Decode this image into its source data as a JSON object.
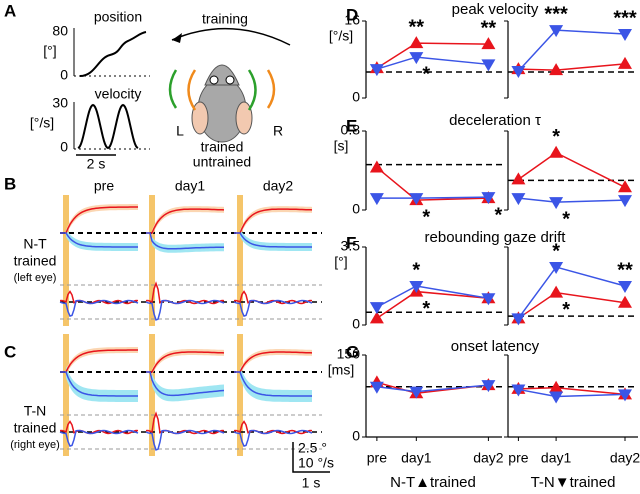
{
  "figure": {
    "panel_labels": [
      "A",
      "B",
      "C"
    ],
    "position": {
      "title": "position",
      "unit": "[°]",
      "ticks": [
        80,
        0
      ]
    },
    "velocity": {
      "title": "velocity",
      "unit": "[°/s]",
      "ticks": [
        30,
        0
      ],
      "scale": "2 s"
    },
    "training": "training",
    "left": "L",
    "right": "R",
    "trained": "trained",
    "untrained": "untrained",
    "columns": [
      "pre",
      "day1",
      "day2"
    ],
    "nt_label": [
      "N-T",
      "trained",
      "(left eye)"
    ],
    "tn_label": [
      "T-N",
      "trained",
      "(right eye)"
    ],
    "scale_bar": [
      "2.5 °",
      "10 °/s",
      "1 s"
    ],
    "legend": [
      "N-T▲trained",
      "T-N▼trained"
    ]
  },
  "chart_data": [
    {
      "type": "line",
      "panel": "D",
      "title": "peak velocity",
      "ylabel": "[°/s]",
      "ylim": [
        0,
        16
      ],
      "yticks": [
        0,
        16
      ],
      "panels": [
        {
          "reference": 5.4,
          "series": [
            {
              "color": "#e8141c",
              "marker": "up",
              "values": [
                6.2,
                11.4,
                11.2
              ]
            },
            {
              "color": "#3b55e6",
              "marker": "down",
              "values": [
                6.0,
                8.5,
                7.0
              ]
            }
          ]
        },
        {
          "reference": 5.4,
          "series": [
            {
              "color": "#e8141c",
              "marker": "up",
              "values": [
                6.0,
                5.8,
                7.1
              ]
            },
            {
              "color": "#3b55e6",
              "marker": "down",
              "values": [
                5.6,
                14.1,
                13.3
              ]
            }
          ]
        }
      ],
      "annotations": [
        {
          "text": "**",
          "panel": 0,
          "series": 0,
          "index": 1
        },
        {
          "text": "**",
          "panel": 0,
          "series": 0,
          "index": 2
        },
        {
          "text": "*",
          "panel": 0,
          "series": 1,
          "index": 1
        },
        {
          "text": "***",
          "panel": 1,
          "series": 1,
          "index": 1
        },
        {
          "text": "***",
          "panel": 1,
          "series": 1,
          "index": 2
        }
      ]
    },
    {
      "type": "line",
      "panel": "E",
      "title": "deceleration τ",
      "ylabel": "[s]",
      "ylim": [
        0,
        0.8
      ],
      "yticks": [
        0,
        0.8
      ],
      "panels": [
        {
          "reference": 0.46,
          "series": [
            {
              "color": "#e8141c",
              "marker": "up",
              "values": [
                0.43,
                0.1,
                0.12
              ]
            },
            {
              "color": "#3b55e6",
              "marker": "down",
              "values": [
                0.12,
                0.12,
                0.13
              ]
            }
          ]
        },
        {
          "reference": 0.3,
          "series": [
            {
              "color": "#e8141c",
              "marker": "up",
              "values": [
                0.31,
                0.58,
                0.23
              ]
            },
            {
              "color": "#3b55e6",
              "marker": "down",
              "values": [
                0.12,
                0.08,
                0.1
              ]
            }
          ]
        }
      ],
      "annotations": [
        {
          "text": "*",
          "panel": 0,
          "series": 0,
          "index": 1
        },
        {
          "text": "*",
          "panel": 0,
          "series": 0,
          "index": 2
        },
        {
          "text": "*",
          "panel": 1,
          "series": 0,
          "index": 1
        },
        {
          "text": "*",
          "panel": 1,
          "series": 1,
          "index": 1
        }
      ]
    },
    {
      "type": "line",
      "panel": "F",
      "title": "rebounding gaze drift",
      "ylabel": "[°]",
      "ylim": [
        0,
        3.5
      ],
      "yticks": [
        0,
        3.5
      ],
      "panels": [
        {
          "reference": 0.57,
          "series": [
            {
              "color": "#e8141c",
              "marker": "up",
              "values": [
                0.3,
                1.5,
                1.2
              ]
            },
            {
              "color": "#3b55e6",
              "marker": "down",
              "values": [
                0.8,
                1.75,
                1.2
              ]
            }
          ]
        },
        {
          "reference": 0.4,
          "series": [
            {
              "color": "#e8141c",
              "marker": "up",
              "values": [
                0.3,
                1.45,
                1.0
              ]
            },
            {
              "color": "#3b55e6",
              "marker": "down",
              "values": [
                0.3,
                2.6,
                1.75
              ]
            }
          ]
        }
      ],
      "annotations": [
        {
          "text": "*",
          "panel": 0,
          "series": 1,
          "index": 1
        },
        {
          "text": "*",
          "panel": 0,
          "series": 0,
          "index": 1
        },
        {
          "text": "*",
          "panel": 1,
          "series": 1,
          "index": 1
        },
        {
          "text": "**",
          "panel": 1,
          "series": 1,
          "index": 2
        },
        {
          "text": "*",
          "panel": 1,
          "series": 0,
          "index": 1
        }
      ]
    },
    {
      "type": "line",
      "panel": "G",
      "title": "onset latency",
      "ylabel": "[ms]",
      "ylim": [
        0,
        150
      ],
      "yticks": [
        0,
        150
      ],
      "categories": [
        "pre",
        "day1",
        "day2"
      ],
      "panels": [
        {
          "reference": 92,
          "series": [
            {
              "color": "#e8141c",
              "marker": "up",
              "values": [
                100,
                80,
                95
              ]
            },
            {
              "color": "#3b55e6",
              "marker": "down",
              "values": [
                92,
                83,
                95
              ]
            }
          ]
        },
        {
          "reference": 92,
          "series": [
            {
              "color": "#e8141c",
              "marker": "up",
              "values": [
                88,
                90,
                78
              ]
            },
            {
              "color": "#3b55e6",
              "marker": "down",
              "values": [
                87,
                74,
                78
              ]
            }
          ]
        }
      ],
      "annotations": []
    }
  ]
}
